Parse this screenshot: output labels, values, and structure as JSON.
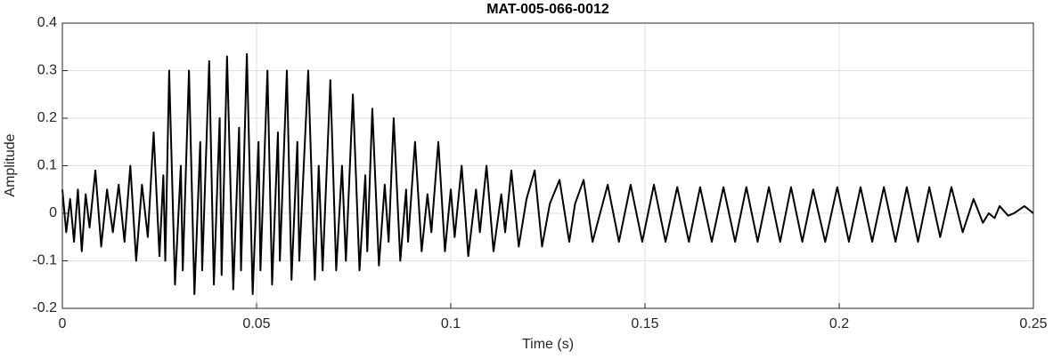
{
  "chart_data": {
    "type": "line",
    "title": "MAT-005-066-0012",
    "xlabel": "Time (s)",
    "ylabel": "Amplitude",
    "x": [
      0,
      0.001,
      0.002,
      0.003,
      0.004,
      0.005,
      0.006,
      0.007,
      0.0085,
      0.01,
      0.0115,
      0.013,
      0.0145,
      0.016,
      0.0175,
      0.019,
      0.0205,
      0.022,
      0.0235,
      0.025,
      0.026,
      0.0265,
      0.0275,
      0.029,
      0.0305,
      0.031,
      0.0326,
      0.034,
      0.0355,
      0.036,
      0.0378,
      0.039,
      0.0405,
      0.041,
      0.0424,
      0.044,
      0.0455,
      0.046,
      0.0475,
      0.049,
      0.0505,
      0.051,
      0.0528,
      0.054,
      0.0555,
      0.056,
      0.0578,
      0.059,
      0.0605,
      0.061,
      0.0633,
      0.065,
      0.066,
      0.067,
      0.069,
      0.0705,
      0.072,
      0.073,
      0.0748,
      0.0765,
      0.078,
      0.0785,
      0.0798,
      0.0815,
      0.083,
      0.084,
      0.0853,
      0.087,
      0.0885,
      0.089,
      0.0908,
      0.0925,
      0.094,
      0.095,
      0.0968,
      0.0985,
      0.1,
      0.101,
      0.1028,
      0.1045,
      0.1065,
      0.1075,
      0.1092,
      0.111,
      0.113,
      0.114,
      0.1156,
      0.1175,
      0.1195,
      0.1216,
      0.1235,
      0.1255,
      0.128,
      0.1305,
      0.132,
      0.1342,
      0.1365,
      0.1404,
      0.1433,
      0.1463,
      0.1493,
      0.1523,
      0.1553,
      0.1583,
      0.1613,
      0.1642,
      0.1672,
      0.1702,
      0.1732,
      0.1761,
      0.179,
      0.1819,
      0.1848,
      0.1876,
      0.1905,
      0.1933,
      0.1964,
      0.1995,
      0.2025,
      0.2055,
      0.2085,
      0.2115,
      0.2145,
      0.2174,
      0.2203,
      0.2232,
      0.226,
      0.2289,
      0.2318,
      0.2346,
      0.237,
      0.2385,
      0.24,
      0.2413,
      0.2435,
      0.245,
      0.2477,
      0.25
    ],
    "values": [
      0.05,
      -0.04,
      0.03,
      -0.06,
      0.05,
      -0.08,
      0.04,
      -0.03,
      0.09,
      -0.07,
      0.05,
      -0.04,
      0.06,
      -0.06,
      0.1,
      -0.1,
      0.06,
      -0.05,
      0.17,
      -0.09,
      0.08,
      -0.1,
      0.3,
      -0.15,
      0.1,
      -0.12,
      0.3,
      -0.17,
      0.15,
      -0.12,
      0.32,
      -0.15,
      0.2,
      -0.13,
      0.33,
      -0.16,
      0.18,
      -0.12,
      0.335,
      -0.17,
      0.15,
      -0.12,
      0.3,
      -0.15,
      0.17,
      -0.1,
      0.3,
      -0.14,
      0.15,
      -0.1,
      0.3,
      -0.14,
      0.1,
      -0.12,
      0.28,
      -0.12,
      0.1,
      -0.1,
      0.25,
      -0.12,
      0.08,
      -0.08,
      0.22,
      -0.11,
      0.06,
      -0.06,
      0.2,
      -0.1,
      0.05,
      -0.06,
      0.15,
      -0.08,
      0.04,
      -0.04,
      0.15,
      -0.08,
      0.05,
      -0.05,
      0.1,
      -0.09,
      0.05,
      -0.04,
      0.1,
      -0.08,
      0.04,
      -0.04,
      0.09,
      -0.07,
      0.03,
      0.09,
      -0.07,
      0.02,
      0.07,
      -0.06,
      0.02,
      0.07,
      -0.06,
      0.06,
      -0.06,
      0.06,
      -0.06,
      0.06,
      -0.06,
      0.055,
      -0.06,
      0.055,
      -0.06,
      0.055,
      -0.06,
      0.055,
      -0.06,
      0.055,
      -0.06,
      0.055,
      -0.06,
      0.05,
      -0.06,
      0.055,
      -0.06,
      0.055,
      -0.06,
      0.055,
      -0.06,
      0.055,
      -0.06,
      0.055,
      -0.05,
      0.055,
      -0.04,
      0.03,
      -0.02,
      0,
      -0.01,
      0.015,
      -0.005,
      0,
      0.015,
      0
    ],
    "color": "#000000",
    "xlim": [
      0,
      0.25
    ],
    "xticks": [
      0,
      0.05,
      0.1,
      0.15,
      0.2,
      0.25
    ],
    "ylim": [
      -0.2,
      0.4
    ],
    "yticks": [
      -0.2,
      -0.1,
      0,
      0.1,
      0.2,
      0.3,
      0.4
    ],
    "grid": true
  }
}
